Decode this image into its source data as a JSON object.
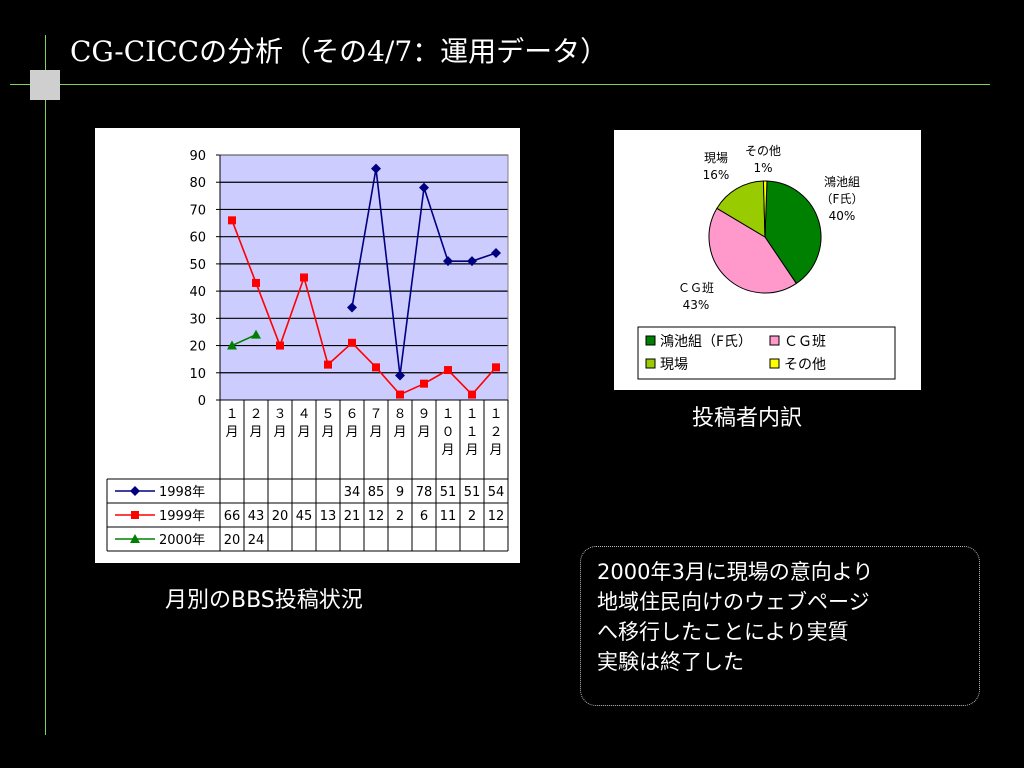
{
  "slide": {
    "title": "CG-CICCの分析（その4/7：運用データ）",
    "caption_line": "月別のBBS投稿状況",
    "caption_pie": "投稿者内訳",
    "note_lines": [
      "2000年3月に現場の意向より",
      "地域住民向けのウェブページ",
      "へ移行したことにより実質",
      "実験は終了した"
    ]
  },
  "chart_data": [
    {
      "type": "line",
      "categories": [
        "1月",
        "2月",
        "3月",
        "4月",
        "5月",
        "6月",
        "7月",
        "8月",
        "9月",
        "10月",
        "11月",
        "12月"
      ],
      "category_glyphs": [
        [
          "１",
          "月"
        ],
        [
          "２",
          "月"
        ],
        [
          "３",
          "月"
        ],
        [
          "４",
          "月"
        ],
        [
          "５",
          "月"
        ],
        [
          "６",
          "月"
        ],
        [
          "７",
          "月"
        ],
        [
          "８",
          "月"
        ],
        [
          "９",
          "月"
        ],
        [
          "１",
          "０",
          "月"
        ],
        [
          "１",
          "１",
          "月"
        ],
        [
          "１",
          "２",
          "月"
        ]
      ],
      "ylim": [
        0,
        90
      ],
      "yticks": [
        0,
        10,
        20,
        30,
        40,
        50,
        60,
        70,
        80,
        90
      ],
      "grid": true,
      "plot_bg": "#ccccff",
      "series": [
        {
          "name": "1998年",
          "color": "#000080",
          "marker": "diamond",
          "values": [
            null,
            null,
            null,
            null,
            null,
            34,
            85,
            9,
            78,
            51,
            51,
            54
          ]
        },
        {
          "name": "1999年",
          "color": "#ff0000",
          "marker": "square",
          "values": [
            66,
            43,
            20,
            45,
            13,
            21,
            12,
            2,
            6,
            11,
            2,
            12
          ]
        },
        {
          "name": "2000年",
          "color": "#008000",
          "marker": "triangle",
          "values": [
            20,
            24,
            null,
            null,
            null,
            null,
            null,
            null,
            null,
            null,
            null,
            null
          ]
        }
      ],
      "legend": "data-table"
    },
    {
      "type": "pie",
      "slices": [
        {
          "label": "鴻池組（F氏）",
          "legend": "鴻池組（F氏）",
          "value": 40,
          "pct": "40%",
          "color": "#008000",
          "label_lines": [
            "鴻池組",
            "（F氏）",
            "40%"
          ]
        },
        {
          "label": "ＣＧ班",
          "legend": "ＣＧ班",
          "value": 43,
          "pct": "43%",
          "color": "#ff99cc",
          "label_lines": [
            "ＣＧ班",
            "43%"
          ]
        },
        {
          "label": "現場",
          "legend": "現場",
          "value": 16,
          "pct": "16%",
          "color": "#99cc00",
          "label_lines": [
            "現場",
            "16%"
          ]
        },
        {
          "label": "その他",
          "legend": "その他",
          "value": 1,
          "pct": "1%",
          "color": "#ffff00",
          "label_lines": [
            "その他",
            "1%"
          ]
        }
      ],
      "legend": "bottom"
    }
  ]
}
